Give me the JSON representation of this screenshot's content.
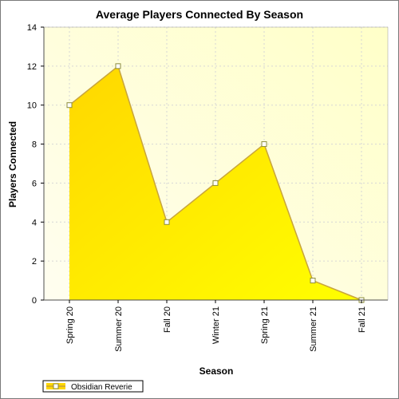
{
  "colors": {
    "plot_bg_start": "#fffef0",
    "plot_bg_end": "#ffffc8",
    "area_top": "#ffd700",
    "area_bottom": "#ffff00",
    "line": "#c8a43c",
    "grid": "#d6d6d6",
    "marker_fill": "#ffffff",
    "marker_stroke": "#8c8c3c"
  },
  "chart_data": {
    "type": "area",
    "title": "Average Players Connected By Season",
    "xlabel": "Season",
    "ylabel": "Players Connected",
    "categories": [
      "Spring 20",
      "Summer 20",
      "Fall 20",
      "Winter 21",
      "Spring 21",
      "Summer 21",
      "Fall 21"
    ],
    "series": [
      {
        "name": "Obsidian Reverie",
        "values": [
          10,
          12,
          4,
          6,
          8,
          1,
          0
        ]
      }
    ],
    "ylim": [
      0,
      14
    ],
    "yticks": [
      0,
      2,
      4,
      6,
      8,
      10,
      12,
      14
    ],
    "grid": true,
    "legend": "bottom-left"
  }
}
